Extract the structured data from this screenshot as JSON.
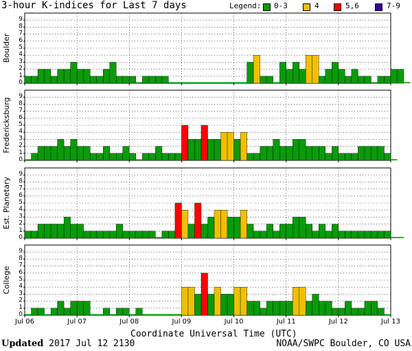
{
  "title": "3-hour K-indices for Last 7 days",
  "legend": {
    "label": "Legend:",
    "items": [
      {
        "label": "0-3",
        "color": "#0a9a0a"
      },
      {
        "label": "4",
        "color": "#f0c000"
      },
      {
        "label": "5,6",
        "color": "#ff0000"
      },
      {
        "label": "7-9",
        "color": "#330099"
      }
    ]
  },
  "footer": {
    "updated_label": "Updated",
    "updated_value": "2017 Jul 12 2130",
    "credit": "NOAA/SWPC Boulder, CO USA"
  },
  "chart_data": {
    "type": "bar",
    "xlabel": "Coordinate Universal Time (UTC)",
    "x_ticks": [
      "Jul 06",
      "Jul 07",
      "Jul 08",
      "Jul 09",
      "Jul 10",
      "Jul 11",
      "Jul 12",
      "Jul 13"
    ],
    "y_ticks": [
      "0",
      "1",
      "2",
      "3",
      "4",
      "5",
      "6",
      "7",
      "8",
      "9"
    ],
    "ylim": [
      0,
      9
    ],
    "grid": true,
    "bins_per_day": 8,
    "panels": [
      {
        "name": "Boulder",
        "values": [
          1,
          1,
          2,
          2,
          1,
          2,
          2,
          3,
          2,
          2,
          1,
          1,
          2,
          3,
          1,
          1,
          1,
          0,
          1,
          1,
          1,
          1,
          0,
          0,
          0,
          0,
          0,
          0,
          0,
          0,
          0,
          0,
          0,
          0,
          3,
          4,
          1,
          1,
          0,
          3,
          2,
          3,
          2,
          4,
          4,
          1,
          2,
          3,
          2,
          1,
          2,
          1,
          1,
          0,
          1,
          1,
          2,
          2,
          0
        ]
      },
      {
        "name": "Fredericksburg",
        "values": [
          0,
          1,
          2,
          2,
          2,
          3,
          2,
          3,
          2,
          2,
          1,
          1,
          2,
          1,
          1,
          2,
          1,
          0,
          1,
          1,
          2,
          1,
          1,
          1,
          5,
          3,
          3,
          5,
          3,
          3,
          4,
          4,
          3,
          4,
          1,
          1,
          2,
          2,
          3,
          2,
          2,
          3,
          3,
          2,
          2,
          2,
          1,
          2,
          1,
          1,
          1,
          2,
          2,
          2,
          2,
          1,
          0
        ]
      },
      {
        "name": "Est. Planetary",
        "values": [
          1,
          1,
          2,
          2,
          2,
          2,
          3,
          2,
          2,
          1,
          1,
          1,
          1,
          1,
          2,
          1,
          1,
          1,
          1,
          1,
          0,
          1,
          1,
          5,
          4,
          2,
          5,
          2,
          3,
          4,
          4,
          3,
          3,
          4,
          2,
          1,
          1,
          2,
          1,
          2,
          2,
          3,
          3,
          2,
          1,
          2,
          1,
          2,
          1,
          1,
          1,
          1,
          1,
          1,
          1,
          1,
          0,
          0
        ]
      },
      {
        "name": "College",
        "values": [
          0,
          1,
          1,
          0,
          1,
          2,
          1,
          2,
          2,
          2,
          0,
          0,
          1,
          0,
          1,
          1,
          0,
          1,
          0,
          0,
          0,
          0,
          0,
          0,
          4,
          4,
          3,
          6,
          3,
          4,
          3,
          3,
          4,
          4,
          2,
          2,
          1,
          2,
          2,
          2,
          2,
          4,
          4,
          2,
          3,
          2,
          2,
          1,
          1,
          2,
          1,
          1,
          2,
          2,
          1,
          0
        ]
      }
    ]
  }
}
